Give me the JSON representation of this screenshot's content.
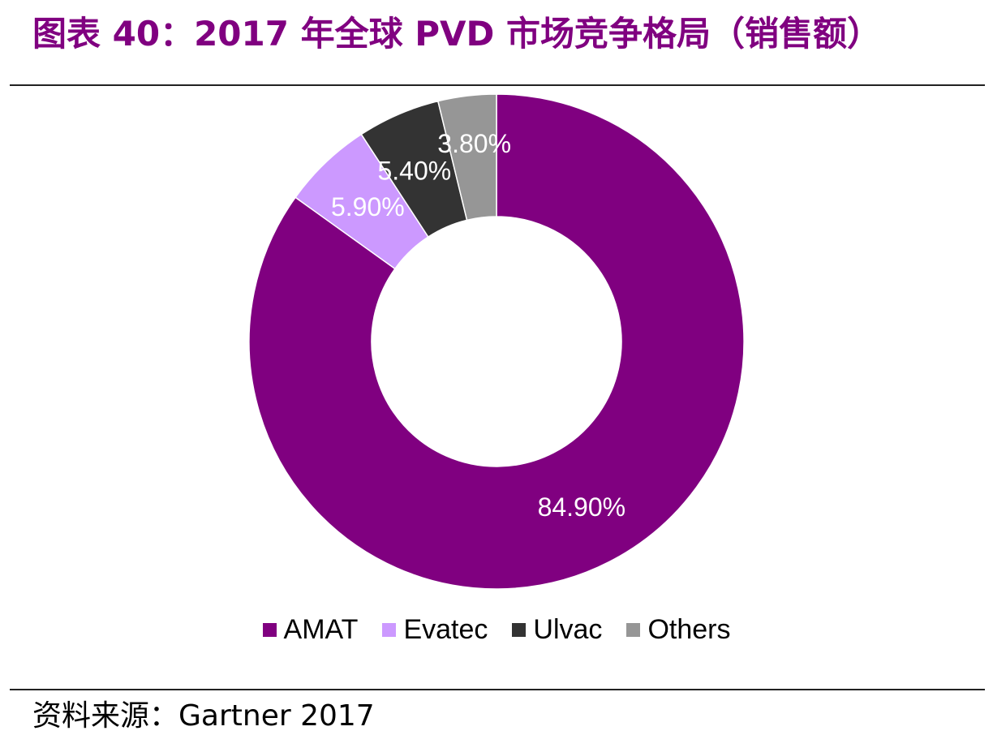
{
  "header": {
    "title": "图表 40：2017 年全球 PVD 市场竞争格局（销售额）"
  },
  "footer": {
    "source": "资料来源：Gartner 2017"
  },
  "chart_data": {
    "type": "pie",
    "subtype": "donut",
    "categories": [
      "AMAT",
      "Evatec",
      "Ulvac",
      "Others"
    ],
    "values": [
      84.9,
      5.9,
      5.4,
      3.8
    ],
    "data_labels": [
      "84.90%",
      "5.90%",
      "5.40%",
      "3.80%"
    ],
    "colors": [
      "#800080",
      "#CC99FF",
      "#333333",
      "#969696"
    ],
    "label_color": "#ffffff",
    "legend": {
      "position": "bottom"
    }
  }
}
